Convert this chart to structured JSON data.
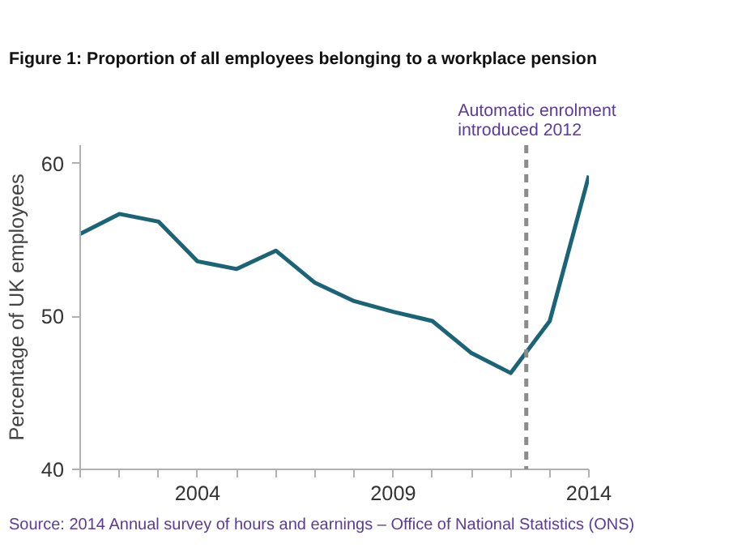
{
  "chart_data": {
    "type": "line",
    "title": "Figure 1: Proportion of all employees belonging to a workplace pension",
    "ylabel": "Percentage of UK employees",
    "x": [
      2001,
      2002,
      2003,
      2004,
      2005,
      2006,
      2007,
      2008,
      2009,
      2010,
      2011,
      2012,
      2013,
      2014
    ],
    "series": [
      {
        "color": "#1b6478",
        "values": [
          55.4,
          56.7,
          56.2,
          53.6,
          53.1,
          54.3,
          52.2,
          51.0,
          50.3,
          49.7,
          47.6,
          46.3,
          49.7,
          59.2
        ]
      }
    ],
    "xlim": [
      2001,
      2014
    ],
    "xticks": [
      {
        "value": 2001,
        "label": null
      },
      {
        "value": 2002,
        "label": null
      },
      {
        "value": 2003,
        "label": null
      },
      2004,
      {
        "value": 2005,
        "label": null
      },
      {
        "value": 2006,
        "label": null
      },
      {
        "value": 2007,
        "label": null
      },
      {
        "value": 2008,
        "label": null
      },
      2009,
      {
        "value": 2010,
        "label": null
      },
      {
        "value": 2011,
        "label": null
      },
      {
        "value": 2012,
        "label": null
      },
      {
        "value": 2013,
        "label": null
      },
      2014
    ],
    "ylim": [
      40,
      61.2
    ],
    "yticks": [
      40,
      50,
      60
    ],
    "grid": false,
    "marker": "none",
    "line_style": "solid",
    "ref_lines": [
      {
        "axis": "x",
        "value": 2012.4,
        "label": "Automatic enrolment\nintroduced 2012",
        "color": "#8c8c8c",
        "line_style": "dashed"
      }
    ],
    "annotations": [
      "Source: 2014 Annual survey of hours and earnings – Office of National Statistics (ONS)"
    ]
  }
}
